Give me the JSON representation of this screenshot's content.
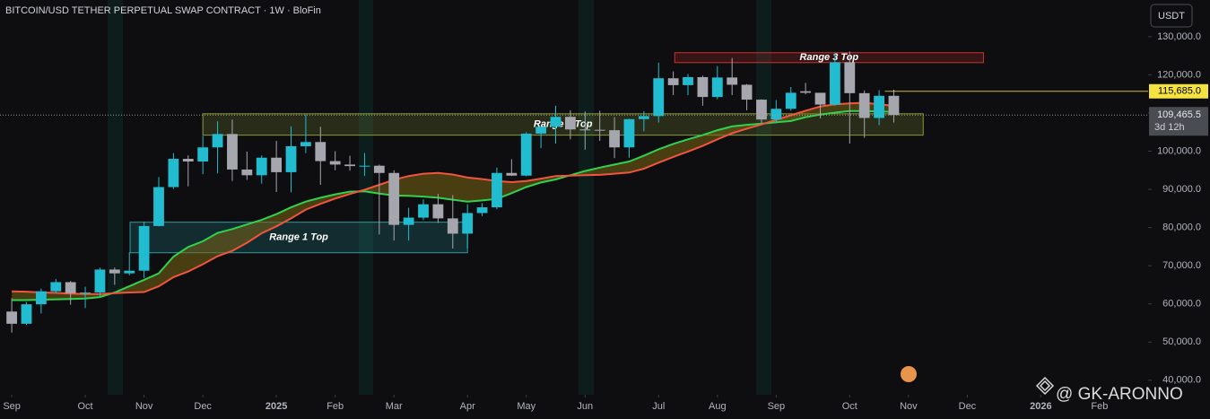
{
  "chart_data": {
    "type": "candlestick",
    "title": "BITCOIN/USD TETHER PERPETUAL SWAP CONTRACT · 1W · BloFin",
    "currency": "USDT",
    "x": [
      0,
      1,
      2,
      3,
      4,
      5,
      6,
      7,
      8,
      9,
      10,
      11,
      12,
      13,
      14,
      15,
      16,
      17,
      18,
      19,
      20,
      21,
      22,
      23,
      24,
      25,
      26,
      27,
      28,
      29,
      30,
      31,
      32,
      33,
      34,
      35,
      36,
      37,
      38,
      39,
      40,
      41,
      42,
      43,
      44,
      45,
      46,
      47,
      48,
      49,
      50,
      51,
      52,
      53,
      54,
      55,
      56,
      57,
      58,
      59,
      60
    ],
    "open": [
      58000,
      54800,
      59900,
      63300,
      65700,
      62800,
      63000,
      69000,
      68000,
      68700,
      80400,
      90600,
      98000,
      97300,
      101000,
      104500,
      95200,
      93700,
      98300,
      94500,
      101300,
      102400,
      97400,
      96500,
      96100,
      96200,
      94300,
      80700,
      82600,
      86100,
      82400,
      78400,
      83800,
      85300,
      94300,
      93600,
      104600,
      106400,
      109000,
      105700,
      105600,
      105500,
      101000,
      108400,
      109200,
      119100,
      117300,
      119400,
      114200,
      119300,
      117400,
      113500,
      108300,
      111100,
      115700,
      115300,
      112200,
      123300,
      115200,
      108700,
      114500
    ],
    "high": [
      61500,
      60500,
      64000,
      66500,
      66000,
      64500,
      69500,
      69500,
      73500,
      81500,
      93200,
      99500,
      98900,
      104000,
      107800,
      108300,
      99900,
      98900,
      102700,
      106500,
      109600,
      106400,
      100000,
      98800,
      99500,
      96500,
      95000,
      85200,
      87400,
      88800,
      88500,
      86100,
      86400,
      95700,
      97900,
      105000,
      106500,
      111900,
      110700,
      110400,
      110600,
      108900,
      108500,
      110500,
      123200,
      120900,
      120200,
      119800,
      122300,
      124400,
      117600,
      113600,
      113400,
      116800,
      117900,
      115300,
      125700,
      126100,
      115900,
      116000,
      116100
    ],
    "low": [
      52500,
      54500,
      57500,
      62700,
      59800,
      58900,
      62000,
      65000,
      67500,
      66800,
      80300,
      90100,
      90800,
      94000,
      94200,
      92200,
      92500,
      91500,
      89300,
      89200,
      99500,
      91200,
      95000,
      94900,
      93500,
      78200,
      76600,
      76600,
      82000,
      81200,
      74500,
      74600,
      83000,
      84800,
      93500,
      93400,
      100800,
      102000,
      103100,
      100400,
      102700,
      98200,
      98300,
      105200,
      107500,
      114700,
      114700,
      111900,
      113600,
      114700,
      110700,
      107300,
      107300,
      110600,
      114900,
      108600,
      111900,
      102000,
      103500,
      106800,
      107500
    ],
    "close": [
      54800,
      59900,
      63300,
      65700,
      62800,
      63000,
      69000,
      68000,
      68700,
      80400,
      90600,
      98000,
      97300,
      101000,
      104500,
      95200,
      93700,
      98300,
      94500,
      101300,
      102400,
      97400,
      96500,
      96100,
      96200,
      94300,
      80700,
      82600,
      86100,
      82400,
      78400,
      83800,
      85300,
      94300,
      93600,
      104600,
      106400,
      109000,
      105700,
      105600,
      105500,
      101000,
      108400,
      109200,
      119100,
      117300,
      119400,
      114200,
      119300,
      117400,
      113500,
      108300,
      111100,
      115300,
      115300,
      112200,
      123300,
      115200,
      108700,
      114500,
      109465.5
    ],
    "up_color": "#22bcd0",
    "down_color": "#a6a6ae",
    "moving_averages": [
      {
        "color": "#2fd24f",
        "values": [
          61000,
          61000,
          61100,
          61200,
          61300,
          61400,
          61800,
          63000,
          64600,
          66300,
          68000,
          72400,
          74900,
          76400,
          78600,
          79600,
          80800,
          82000,
          83500,
          85300,
          86800,
          87800,
          88700,
          89400,
          89500,
          88900,
          88400,
          88300,
          88100,
          87800,
          87300,
          86800,
          87100,
          87500,
          89000,
          90600,
          91800,
          92600,
          93700,
          94800,
          95700,
          96500,
          97300,
          98800,
          100500,
          101900,
          103100,
          104200,
          105500,
          106500,
          106900,
          107200,
          107600,
          107900,
          108900,
          109600,
          110100,
          110500,
          110500,
          110400,
          110300
        ]
      },
      {
        "color": "#f2553d",
        "values": [
          63300,
          63200,
          63000,
          62900,
          62700,
          62600,
          62600,
          62800,
          63000,
          63100,
          64600,
          67000,
          68500,
          70400,
          72500,
          73900,
          76000,
          78500,
          80300,
          82400,
          84700,
          86200,
          87600,
          88800,
          89900,
          91200,
          92500,
          93500,
          94100,
          94300,
          93900,
          93100,
          92700,
          92200,
          91900,
          92200,
          92800,
          93500,
          93600,
          93700,
          93800,
          94100,
          94400,
          95400,
          97000,
          98500,
          99900,
          101400,
          103100,
          104700,
          105900,
          107000,
          108200,
          109400,
          110600,
          111700,
          112300,
          112500,
          112700,
          112300,
          111900
        ]
      }
    ],
    "band_color": "#7a6414",
    "zones": [
      {
        "label": "Range 1 Top",
        "x": [
          8.05,
          31.0
        ],
        "y": [
          73400,
          81400
        ],
        "color": "#2a9da0"
      },
      {
        "label": "Range 2 Top",
        "x": [
          13.0,
          62.0
        ],
        "y": [
          104200,
          109800
        ],
        "color": "#8a9a3a"
      },
      {
        "label": "Range 3 Top",
        "x": [
          45.1,
          66.1
        ],
        "y": [
          123200,
          125800
        ],
        "color": "#c83232"
      }
    ],
    "price_line": {
      "value": 115685,
      "label": "115,685.0",
      "color": "#f5e342"
    },
    "last_price": {
      "value": 109465.5,
      "label": "109,465.5",
      "countdown": "3d 12h"
    },
    "xlim": [
      -0.8,
      77.3
    ],
    "ylim": [
      36200,
      139600
    ],
    "xticks": [
      {
        "value": 0,
        "label": "Sep"
      },
      {
        "value": 5,
        "label": "Oct"
      },
      {
        "value": 9,
        "label": "Nov"
      },
      {
        "value": 13,
        "label": "Dec"
      },
      {
        "value": 18,
        "label": "2025"
      },
      {
        "value": 22,
        "label": "Feb"
      },
      {
        "value": 26,
        "label": "Mar"
      },
      {
        "value": 31,
        "label": "Apr"
      },
      {
        "value": 35,
        "label": "May"
      },
      {
        "value": 39,
        "label": "Jun"
      },
      {
        "value": 44,
        "label": "Jul"
      },
      {
        "value": 48,
        "label": "Aug"
      },
      {
        "value": 52,
        "label": "Sep"
      },
      {
        "value": 57,
        "label": "Oct"
      },
      {
        "value": 61,
        "label": "Nov"
      },
      {
        "value": 65,
        "label": "Dec"
      },
      {
        "value": 70,
        "label": "2026"
      },
      {
        "value": 74,
        "label": "Feb"
      }
    ],
    "yticks": [
      {
        "value": 40000,
        "label": "40,000.0"
      },
      {
        "value": 50000,
        "label": "50,000.0"
      },
      {
        "value": 60000,
        "label": "60,000.0"
      },
      {
        "value": 70000,
        "label": "70,000.0"
      },
      {
        "value": 80000,
        "label": "80,000.0"
      },
      {
        "value": 90000,
        "label": "90,000.0"
      },
      {
        "value": 100000,
        "label": "100,000.0"
      },
      {
        "value": 110000,
        "label": "110,000.0"
      },
      {
        "value": 120000,
        "label": "120,000.0"
      },
      {
        "value": 130000,
        "label": "130,000.0"
      }
    ],
    "watermark": "@ GK-ARONNO"
  }
}
